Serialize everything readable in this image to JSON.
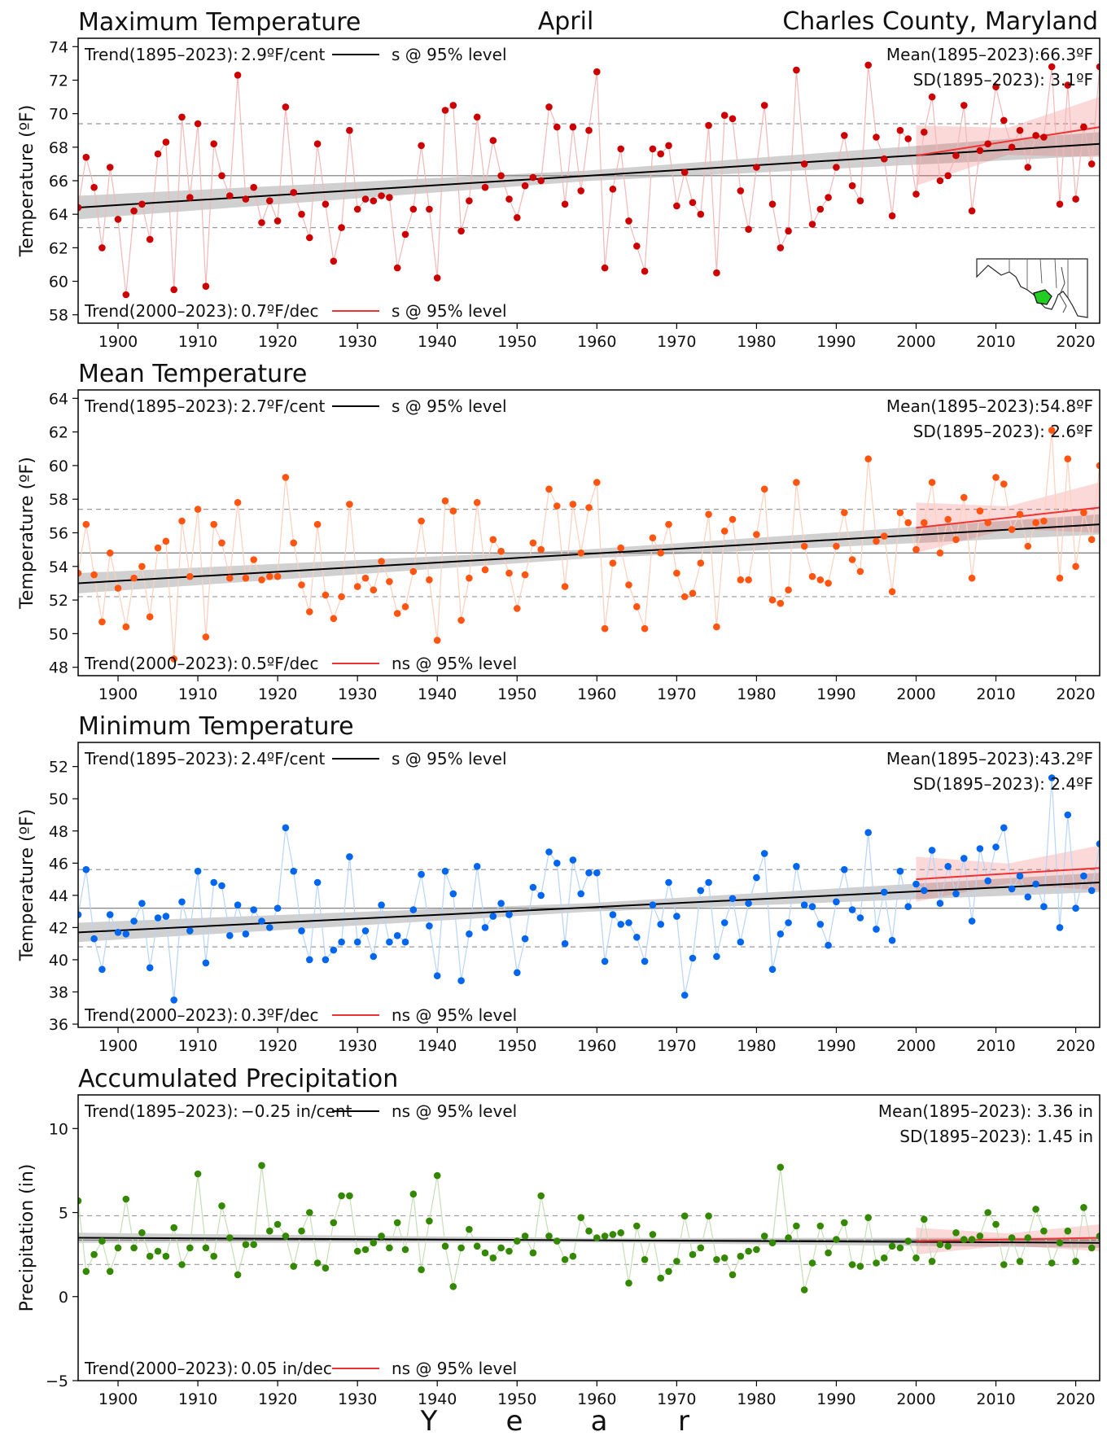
{
  "header": {
    "month": "April",
    "location": "Charles County, Maryland",
    "x_axis_label": [
      "Y",
      "e",
      "a",
      "r"
    ]
  },
  "inset_map": {
    "label": "maryland-locator-map",
    "highlight_color": "#22cc22"
  },
  "chart_data": [
    {
      "type": "scatter",
      "title": "Maximum Temperature",
      "ylabel": "Temperature (ºF)",
      "xlim": [
        1895,
        2023
      ],
      "ylim": [
        57.5,
        74.5
      ],
      "yticks": [
        58,
        60,
        62,
        64,
        66,
        68,
        70,
        72,
        74
      ],
      "xticks": [
        1900,
        1910,
        1920,
        1930,
        1940,
        1950,
        1960,
        1970,
        1980,
        1990,
        2000,
        2010,
        2020
      ],
      "color": "#cc0000",
      "mean": 66.3,
      "sd": 3.1,
      "trend_long": {
        "label": "Trend(1895–2023):",
        "value": "2.9ºF/cent",
        "sig": "s @ 95% level",
        "start": [
          1895,
          64.4
        ],
        "end": [
          2023,
          68.2
        ],
        "band": 0.7
      },
      "trend_recent": {
        "label": "Trend(2000–2023):",
        "value": "0.7ºF/dec",
        "sig": "s @ 95% level",
        "start": [
          2000,
          67.5
        ],
        "end": [
          2023,
          69.2
        ],
        "band": 1.8
      },
      "mean_label": "Mean(1895–2023):66.3ºF",
      "sd_label": "SD(1895–2023): 3.1ºF",
      "x": [
        1895,
        1896,
        1897,
        1898,
        1899,
        1900,
        1901,
        1902,
        1903,
        1904,
        1905,
        1906,
        1907,
        1908,
        1909,
        1910,
        1911,
        1912,
        1913,
        1914,
        1915,
        1916,
        1917,
        1918,
        1919,
        1920,
        1921,
        1922,
        1923,
        1924,
        1925,
        1926,
        1927,
        1928,
        1929,
        1930,
        1931,
        1932,
        1933,
        1934,
        1935,
        1936,
        1937,
        1938,
        1939,
        1940,
        1941,
        1942,
        1943,
        1944,
        1945,
        1946,
        1947,
        1948,
        1949,
        1950,
        1951,
        1952,
        1953,
        1954,
        1955,
        1956,
        1957,
        1958,
        1959,
        1960,
        1961,
        1962,
        1963,
        1964,
        1965,
        1966,
        1967,
        1968,
        1969,
        1970,
        1971,
        1972,
        1973,
        1974,
        1975,
        1976,
        1977,
        1978,
        1979,
        1980,
        1981,
        1982,
        1983,
        1984,
        1985,
        1986,
        1987,
        1988,
        1989,
        1990,
        1991,
        1992,
        1993,
        1994,
        1995,
        1996,
        1997,
        1998,
        1999,
        2000,
        2001,
        2002,
        2003,
        2004,
        2005,
        2006,
        2007,
        2008,
        2009,
        2010,
        2011,
        2012,
        2013,
        2014,
        2015,
        2016,
        2017,
        2018,
        2019,
        2020,
        2021,
        2022,
        2023
      ],
      "values": [
        64.4,
        67.4,
        65.6,
        62.0,
        66.8,
        63.7,
        59.2,
        64.2,
        64.6,
        62.5,
        67.6,
        68.3,
        59.5,
        69.8,
        65.0,
        69.4,
        59.7,
        68.2,
        66.3,
        65.1,
        72.3,
        64.9,
        65.6,
        63.5,
        64.8,
        63.6,
        70.4,
        65.3,
        64.0,
        62.6,
        68.2,
        64.6,
        61.2,
        63.2,
        69.0,
        64.3,
        64.9,
        64.8,
        65.1,
        65.0,
        60.8,
        62.8,
        64.3,
        68.1,
        64.3,
        60.2,
        70.2,
        70.5,
        63.0,
        64.8,
        69.8,
        65.6,
        68.4,
        66.3,
        64.9,
        63.8,
        65.7,
        66.2,
        66.0,
        70.4,
        69.2,
        64.6,
        69.2,
        65.4,
        69.0,
        72.5,
        60.8,
        65.5,
        67.9,
        63.6,
        62.1,
        60.6,
        67.9,
        67.6,
        68.1,
        64.5,
        66.5,
        64.7,
        64.0,
        69.3,
        60.5,
        69.9,
        69.7,
        65.4,
        63.1,
        66.8,
        70.5,
        64.6,
        62.0,
        63.0,
        72.6,
        67.0,
        63.4,
        64.3,
        65.0,
        66.8,
        68.7,
        65.7,
        64.8,
        72.9,
        68.6,
        67.3,
        63.9,
        69.0,
        68.5,
        65.2,
        68.9,
        71.0,
        66.0,
        66.3,
        67.5,
        70.5,
        64.2,
        67.8,
        68.2,
        71.6,
        69.6,
        68.0,
        69.0,
        66.8,
        68.7,
        68.6,
        72.8,
        64.6,
        71.7,
        64.9,
        69.2,
        67.0,
        72.8
      ]
    },
    {
      "type": "scatter",
      "title": "Mean Temperature",
      "ylabel": "Temperature (ºF)",
      "xlim": [
        1895,
        2023
      ],
      "ylim": [
        47.5,
        64.5
      ],
      "yticks": [
        48,
        50,
        52,
        54,
        56,
        58,
        60,
        62,
        64
      ],
      "xticks": [
        1900,
        1910,
        1920,
        1930,
        1940,
        1950,
        1960,
        1970,
        1980,
        1990,
        2000,
        2010,
        2020
      ],
      "color": "#ff5511",
      "mean": 54.8,
      "sd": 2.6,
      "trend_long": {
        "label": "Trend(1895–2023):",
        "value": "2.7ºF/cent",
        "sig": "s @ 95% level",
        "start": [
          1895,
          53.0
        ],
        "end": [
          2023,
          56.5
        ],
        "band": 0.6
      },
      "trend_recent": {
        "label": "Trend(2000–2023):",
        "value": "0.5ºF/dec",
        "sig": "ns @ 95% level",
        "start": [
          2000,
          56.3
        ],
        "end": [
          2023,
          57.5
        ],
        "band": 1.5
      },
      "mean_label": "Mean(1895–2023):54.8ºF",
      "sd_label": "SD(1895–2023): 2.6ºF",
      "x": [
        1895,
        1896,
        1897,
        1898,
        1899,
        1900,
        1901,
        1902,
        1903,
        1904,
        1905,
        1906,
        1907,
        1908,
        1909,
        1910,
        1911,
        1912,
        1913,
        1914,
        1915,
        1916,
        1917,
        1918,
        1919,
        1920,
        1921,
        1922,
        1923,
        1924,
        1925,
        1926,
        1927,
        1928,
        1929,
        1930,
        1931,
        1932,
        1933,
        1934,
        1935,
        1936,
        1937,
        1938,
        1939,
        1940,
        1941,
        1942,
        1943,
        1944,
        1945,
        1946,
        1947,
        1948,
        1949,
        1950,
        1951,
        1952,
        1953,
        1954,
        1955,
        1956,
        1957,
        1958,
        1959,
        1960,
        1961,
        1962,
        1963,
        1964,
        1965,
        1966,
        1967,
        1968,
        1969,
        1970,
        1971,
        1972,
        1973,
        1974,
        1975,
        1976,
        1977,
        1978,
        1979,
        1980,
        1981,
        1982,
        1983,
        1984,
        1985,
        1986,
        1987,
        1988,
        1989,
        1990,
        1991,
        1992,
        1993,
        1994,
        1995,
        1996,
        1997,
        1998,
        1999,
        2000,
        2001,
        2002,
        2003,
        2004,
        2005,
        2006,
        2007,
        2008,
        2009,
        2010,
        2011,
        2012,
        2013,
        2014,
        2015,
        2016,
        2017,
        2018,
        2019,
        2020,
        2021,
        2022,
        2023
      ],
      "values": [
        53.6,
        56.5,
        53.5,
        50.7,
        54.8,
        52.7,
        50.4,
        53.3,
        54.0,
        51.0,
        55.1,
        55.5,
        48.5,
        56.7,
        53.4,
        57.4,
        49.8,
        56.5,
        55.4,
        53.3,
        57.8,
        53.3,
        54.4,
        53.2,
        53.4,
        53.4,
        59.3,
        55.4,
        52.9,
        51.3,
        56.5,
        52.3,
        50.9,
        52.2,
        57.7,
        52.8,
        53.3,
        52.6,
        54.3,
        53.1,
        51.2,
        51.6,
        53.7,
        56.7,
        53.2,
        49.6,
        57.9,
        57.3,
        50.8,
        53.3,
        57.8,
        53.8,
        55.6,
        54.9,
        53.6,
        51.5,
        53.5,
        55.4,
        55.0,
        58.6,
        57.6,
        52.8,
        57.7,
        54.8,
        57.5,
        59.0,
        50.3,
        54.2,
        55.1,
        52.9,
        51.6,
        50.3,
        55.7,
        54.8,
        56.5,
        53.6,
        52.2,
        52.4,
        54.2,
        57.1,
        50.4,
        56.1,
        56.8,
        53.2,
        53.2,
        55.9,
        58.6,
        52.0,
        51.8,
        52.6,
        59.0,
        55.2,
        53.4,
        53.2,
        53.0,
        55.2,
        57.2,
        54.4,
        53.7,
        60.4,
        55.5,
        55.8,
        52.5,
        57.2,
        56.6,
        55.0,
        56.6,
        59.0,
        54.8,
        56.8,
        55.6,
        58.1,
        53.3,
        57.3,
        56.6,
        59.3,
        58.9,
        56.2,
        57.1,
        55.2,
        56.6,
        56.7,
        62.1,
        53.3,
        60.4,
        54.0,
        57.2,
        55.6,
        60.0
      ]
    },
    {
      "type": "scatter",
      "title": "Minimum Temperature",
      "ylabel": "Temperature (ºF)",
      "xlim": [
        1895,
        2023
      ],
      "ylim": [
        35.8,
        53.5
      ],
      "yticks": [
        36,
        38,
        40,
        42,
        44,
        46,
        48,
        50,
        52
      ],
      "xticks": [
        1900,
        1910,
        1920,
        1930,
        1940,
        1950,
        1960,
        1970,
        1980,
        1990,
        2000,
        2010,
        2020
      ],
      "color": "#0066ee",
      "mean": 43.2,
      "sd": 2.4,
      "trend_long": {
        "label": "Trend(1895–2023):",
        "value": "2.4ºF/cent",
        "sig": "s @ 95% level",
        "start": [
          1895,
          41.7
        ],
        "end": [
          2023,
          44.8
        ],
        "band": 0.6
      },
      "trend_recent": {
        "label": "Trend(2000–2023):",
        "value": "0.3ºF/dec",
        "sig": "ns @ 95% level",
        "start": [
          2000,
          45.0
        ],
        "end": [
          2023,
          45.7
        ],
        "band": 1.4
      },
      "mean_label": "Mean(1895–2023):43.2ºF",
      "sd_label": "SD(1895–2023): 2.4ºF",
      "x": [
        1895,
        1896,
        1897,
        1898,
        1899,
        1900,
        1901,
        1902,
        1903,
        1904,
        1905,
        1906,
        1907,
        1908,
        1909,
        1910,
        1911,
        1912,
        1913,
        1914,
        1915,
        1916,
        1917,
        1918,
        1919,
        1920,
        1921,
        1922,
        1923,
        1924,
        1925,
        1926,
        1927,
        1928,
        1929,
        1930,
        1931,
        1932,
        1933,
        1934,
        1935,
        1936,
        1937,
        1938,
        1939,
        1940,
        1941,
        1942,
        1943,
        1944,
        1945,
        1946,
        1947,
        1948,
        1949,
        1950,
        1951,
        1952,
        1953,
        1954,
        1955,
        1956,
        1957,
        1958,
        1959,
        1960,
        1961,
        1962,
        1963,
        1964,
        1965,
        1966,
        1967,
        1968,
        1969,
        1970,
        1971,
        1972,
        1973,
        1974,
        1975,
        1976,
        1977,
        1978,
        1979,
        1980,
        1981,
        1982,
        1983,
        1984,
        1985,
        1986,
        1987,
        1988,
        1989,
        1990,
        1991,
        1992,
        1993,
        1994,
        1995,
        1996,
        1997,
        1998,
        1999,
        2000,
        2001,
        2002,
        2003,
        2004,
        2005,
        2006,
        2007,
        2008,
        2009,
        2010,
        2011,
        2012,
        2013,
        2014,
        2015,
        2016,
        2017,
        2018,
        2019,
        2020,
        2021,
        2022,
        2023
      ],
      "values": [
        42.8,
        45.6,
        41.3,
        39.4,
        42.8,
        41.7,
        41.6,
        42.4,
        43.5,
        39.5,
        42.6,
        42.7,
        37.5,
        43.6,
        41.8,
        45.5,
        39.8,
        44.8,
        44.6,
        41.5,
        43.4,
        41.6,
        43.1,
        42.4,
        42.0,
        43.2,
        48.2,
        45.5,
        41.8,
        40.0,
        44.8,
        40.0,
        40.6,
        41.1,
        46.4,
        41.1,
        41.8,
        40.2,
        43.4,
        41.1,
        41.5,
        41.1,
        43.1,
        45.3,
        42.1,
        39.0,
        45.5,
        44.1,
        38.7,
        41.6,
        45.8,
        42.0,
        42.7,
        43.5,
        42.8,
        39.2,
        41.3,
        44.5,
        44.0,
        46.7,
        46.0,
        41.0,
        46.2,
        44.1,
        45.4,
        45.4,
        39.9,
        42.8,
        42.2,
        42.3,
        41.4,
        39.9,
        43.4,
        42.2,
        44.8,
        42.7,
        37.8,
        40.1,
        44.3,
        44.8,
        40.2,
        42.3,
        43.8,
        41.1,
        43.5,
        45.1,
        46.6,
        39.4,
        41.6,
        42.3,
        45.8,
        43.4,
        43.3,
        42.2,
        40.9,
        43.6,
        45.6,
        43.1,
        42.6,
        47.9,
        41.9,
        44.2,
        41.2,
        45.5,
        43.3,
        44.7,
        44.3,
        46.8,
        43.5,
        45.8,
        44.1,
        46.3,
        42.4,
        46.9,
        44.9,
        47.0,
        48.2,
        44.4,
        45.2,
        43.9,
        44.7,
        43.3,
        51.3,
        42.0,
        49.0,
        43.2,
        45.2,
        44.3,
        47.2
      ]
    },
    {
      "type": "scatter",
      "title": "Accumulated Precipitation",
      "ylabel": "Precipitation (in)",
      "xlim": [
        1895,
        2023
      ],
      "ylim": [
        -5,
        12
      ],
      "yticks": [
        -5,
        0,
        5,
        10
      ],
      "xticks": [
        1900,
        1910,
        1920,
        1930,
        1940,
        1950,
        1960,
        1970,
        1980,
        1990,
        2000,
        2010,
        2020
      ],
      "color": "#338800",
      "mean": 3.36,
      "sd": 1.45,
      "trend_long": {
        "label": "Trend(1895–2023):",
        "value": "−0.25 in/cent",
        "sig": "ns @ 95% level",
        "start": [
          1895,
          3.5
        ],
        "end": [
          2023,
          3.2
        ],
        "band": 0.3
      },
      "trend_recent": {
        "label": "Trend(2000–2023):",
        "value": "0.05 in/dec",
        "sig": "ns @ 95% level",
        "start": [
          2000,
          3.3
        ],
        "end": [
          2023,
          3.5
        ],
        "band": 0.8
      },
      "mean_label": "Mean(1895–2023): 3.36 in",
      "sd_label": "SD(1895–2023): 1.45 in",
      "x": [
        1895,
        1896,
        1897,
        1898,
        1899,
        1900,
        1901,
        1902,
        1903,
        1904,
        1905,
        1906,
        1907,
        1908,
        1909,
        1910,
        1911,
        1912,
        1913,
        1914,
        1915,
        1916,
        1917,
        1918,
        1919,
        1920,
        1921,
        1922,
        1923,
        1924,
        1925,
        1926,
        1927,
        1928,
        1929,
        1930,
        1931,
        1932,
        1933,
        1934,
        1935,
        1936,
        1937,
        1938,
        1939,
        1940,
        1941,
        1942,
        1943,
        1944,
        1945,
        1946,
        1947,
        1948,
        1949,
        1950,
        1951,
        1952,
        1953,
        1954,
        1955,
        1956,
        1957,
        1958,
        1959,
        1960,
        1961,
        1962,
        1963,
        1964,
        1965,
        1966,
        1967,
        1968,
        1969,
        1970,
        1971,
        1972,
        1973,
        1974,
        1975,
        1976,
        1977,
        1978,
        1979,
        1980,
        1981,
        1982,
        1983,
        1984,
        1985,
        1986,
        1987,
        1988,
        1989,
        1990,
        1991,
        1992,
        1993,
        1994,
        1995,
        1996,
        1997,
        1998,
        1999,
        2000,
        2001,
        2002,
        2003,
        2004,
        2005,
        2006,
        2007,
        2008,
        2009,
        2010,
        2011,
        2012,
        2013,
        2014,
        2015,
        2016,
        2017,
        2018,
        2019,
        2020,
        2021,
        2022,
        2023
      ],
      "values": [
        5.7,
        1.5,
        2.5,
        3.3,
        1.5,
        2.9,
        5.8,
        2.9,
        3.8,
        2.4,
        2.7,
        2.4,
        4.1,
        1.9,
        2.9,
        7.3,
        2.9,
        2.4,
        5.4,
        3.5,
        1.3,
        3.1,
        3.1,
        7.8,
        3.9,
        4.3,
        3.6,
        1.8,
        3.9,
        5.0,
        2.0,
        1.7,
        4.4,
        6.0,
        6.0,
        2.7,
        2.8,
        3.2,
        3.6,
        2.9,
        4.4,
        2.8,
        6.1,
        1.6,
        4.5,
        7.2,
        3.0,
        0.6,
        2.9,
        4.0,
        3.0,
        2.6,
        2.3,
        2.9,
        2.7,
        3.3,
        3.6,
        2.6,
        6.0,
        3.6,
        3.3,
        2.2,
        2.4,
        4.7,
        3.9,
        3.5,
        3.6,
        3.7,
        3.8,
        0.8,
        4.2,
        2.2,
        3.7,
        1.1,
        1.5,
        2.1,
        4.8,
        2.5,
        2.9,
        4.8,
        2.2,
        2.3,
        1.3,
        2.4,
        2.7,
        2.8,
        3.6,
        3.2,
        7.7,
        3.5,
        4.2,
        0.4,
        2.0,
        4.2,
        2.6,
        3.4,
        4.4,
        1.9,
        1.8,
        4.7,
        2.0,
        2.3,
        3.0,
        2.9,
        3.3,
        2.3,
        4.6,
        2.1,
        3.1,
        3.0,
        3.8,
        3.4,
        3.4,
        3.6,
        5.0,
        4.3,
        1.9,
        3.5,
        2.1,
        3.5,
        5.2,
        3.9,
        2.0,
        3.2,
        3.9,
        2.1,
        5.3,
        2.9,
        3.6
      ]
    }
  ]
}
